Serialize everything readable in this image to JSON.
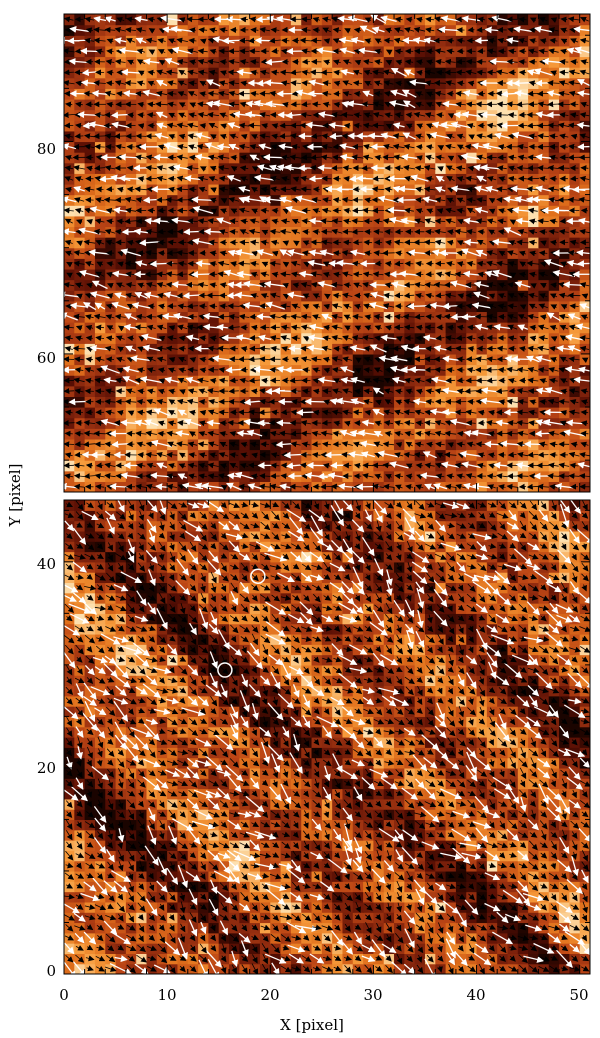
{
  "chart_data": [
    {
      "type": "heatmap",
      "panel": "top",
      "xlim": [
        0,
        51
      ],
      "ylim": [
        47,
        92
      ],
      "yticks": [
        60,
        80
      ],
      "grid": false,
      "colormap": [
        "#1a0400",
        "#5a0f04",
        "#8e2a0e",
        "#bb4515",
        "#e0701c",
        "#f69a3a",
        "#fde0b0"
      ],
      "flow_vectors": {
        "dominant_direction": "left / lower-left",
        "colors": [
          "#000000",
          "#ffffff"
        ]
      }
    },
    {
      "type": "heatmap",
      "panel": "bottom",
      "xlim": [
        0,
        51
      ],
      "ylim": [
        0,
        46
      ],
      "xticks": [
        0,
        10,
        20,
        30,
        40,
        50
      ],
      "yticks": [
        0,
        20,
        40
      ],
      "grid": false,
      "colormap": [
        "#1a0400",
        "#5a0f04",
        "#8e2a0e",
        "#bb4515",
        "#e0701c",
        "#f69a3a",
        "#fde0b0"
      ],
      "flow_vectors": {
        "dominant_direction": "right / lower-right",
        "colors": [
          "#000000",
          "#ffffff"
        ]
      },
      "markers": [
        {
          "shape": "circle",
          "x": 18.8,
          "y": 38.6
        },
        {
          "shape": "circle",
          "x": 15.6,
          "y": 29.5
        }
      ]
    }
  ],
  "labels": {
    "xlabel": "X [pixel]",
    "ylabel": "Y [pixel]",
    "top_yticks": [
      "80",
      "60"
    ],
    "bottom_yticks": [
      "40",
      "20",
      "0"
    ],
    "xticks": [
      "0",
      "10",
      "20",
      "30",
      "40",
      "50"
    ]
  }
}
